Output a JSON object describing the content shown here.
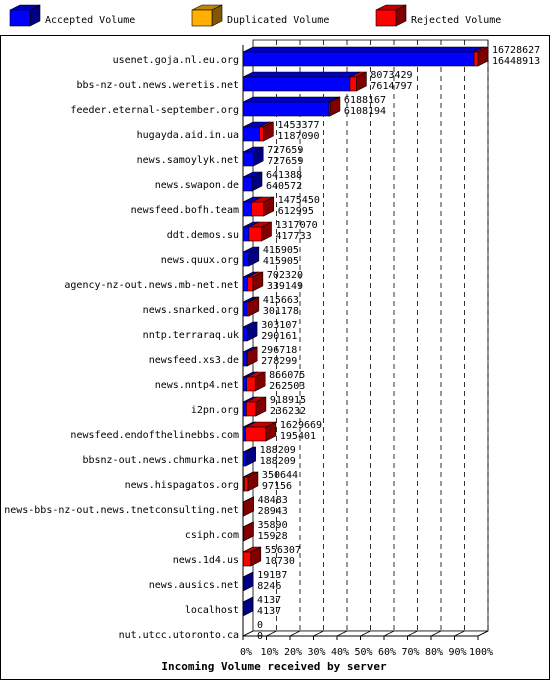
{
  "chart_data": {
    "type": "bar",
    "orientation": "horizontal",
    "title": "Incoming Volume received by server",
    "legend": {
      "placement": "top",
      "items": [
        {
          "key": "accepted",
          "label": "Accepted Volume",
          "color": "#0000ff"
        },
        {
          "key": "duplicated",
          "label": "Duplicated Volume",
          "color": "#ffb000"
        },
        {
          "key": "rejected",
          "label": "Rejected Volume",
          "color": "#ff0000"
        }
      ]
    },
    "xlim": [
      0,
      100
    ],
    "x_ticks": [
      "0%",
      "10%",
      "20%",
      "30%",
      "40%",
      "50%",
      "60%",
      "70%",
      "80%",
      "90%",
      "100%"
    ],
    "grid": "vertical dashed",
    "categories": [
      "usenet.goja.nl.eu.org",
      "bbs-nz-out.news.weretis.net",
      "feeder.eternal-september.org",
      "hugayda.aid.in.ua",
      "news.samoylyk.net",
      "news.swapon.de",
      "newsfeed.bofh.team",
      "ddt.demos.su",
      "news.quux.org",
      "agency-nz-out.news.mb-net.net",
      "news.snarked.org",
      "nntp.terraraq.uk",
      "newsfeed.xs3.de",
      "news.nntp4.net",
      "i2pn.org",
      "newsfeed.endofthelinebbs.com",
      "bbsnz-out.news.chmurka.net",
      "news.hispagatos.org",
      "news-bbs-nz-out.news.tnetconsulting.net",
      "csiph.com",
      "news.1d4.us",
      "news.ausics.net",
      "localhost",
      "nut.utcc.utoronto.ca"
    ],
    "total_volume": [
      16728627,
      8073429,
      6188167,
      1453377,
      727659,
      641388,
      1475450,
      1317070,
      415905,
      702320,
      415663,
      303107,
      296718,
      866075,
      918915,
      1629669,
      188209,
      350644,
      48483,
      35890,
      556307,
      19137,
      4137,
      0
    ],
    "accepted_volume": [
      16448913,
      7614797,
      6108194,
      1187090,
      727659,
      640572,
      612995,
      417733,
      415905,
      339149,
      301178,
      290161,
      278299,
      262503,
      236232,
      195401,
      188209,
      97156,
      28943,
      15928,
      10730,
      8246,
      4137,
      0
    ],
    "total_labels": [
      "16728627",
      "8073429",
      "6188167",
      "1453377",
      "727659",
      "641388",
      "1475450",
      "1317070",
      "415905",
      "702320",
      "415663",
      "303107",
      "296718",
      "866075",
      "918915",
      "1629669",
      "188209",
      "350644",
      "48483",
      "35890",
      "556307",
      "19137",
      "4137",
      "0"
    ],
    "accepted_labels": [
      "16448913",
      "7614797",
      "6108194",
      "1187090",
      "727659",
      "640572",
      "612995",
      "417733",
      "415905",
      "339149",
      "301178",
      "290161",
      "278299",
      "262503",
      "236232",
      "195401",
      "188209",
      "97156",
      "28943",
      "15928",
      "10730",
      "8246",
      "4137",
      "0"
    ]
  }
}
